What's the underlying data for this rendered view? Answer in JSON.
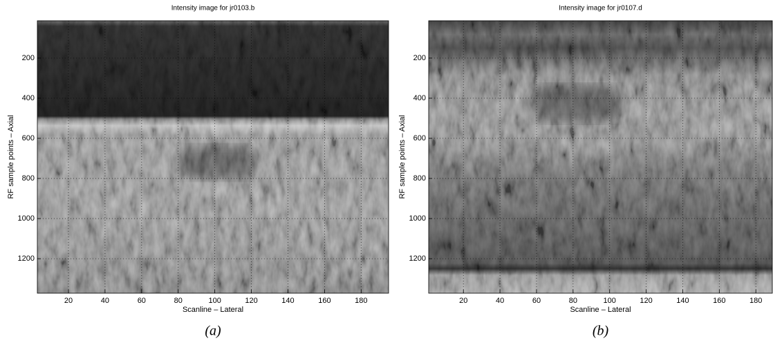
{
  "chart_data": [
    {
      "type": "image",
      "title": "Intensity image for jr0103.b",
      "xlabel": "Scanline – Lateral",
      "ylabel": "RF sample points – Axial",
      "xlim": [
        3,
        195
      ],
      "ylim": [
        14,
        1372
      ],
      "xticks": [
        20,
        40,
        60,
        80,
        100,
        120,
        140,
        160,
        180
      ],
      "yticks": [
        200,
        400,
        600,
        800,
        1000,
        1200
      ],
      "grid": true,
      "caption": "(a)"
    },
    {
      "type": "image",
      "title": "Intensity image for jr0107.d",
      "xlabel": "Scanline – Lateral",
      "ylabel": "RF sample points – Axial",
      "xlim": [
        1,
        189
      ],
      "ylim": [
        14,
        1372
      ],
      "xticks": [
        20,
        40,
        60,
        80,
        100,
        120,
        140,
        160,
        180
      ],
      "yticks": [
        200,
        400,
        600,
        800,
        1000,
        1200
      ],
      "grid": true,
      "caption": "(b)"
    }
  ]
}
